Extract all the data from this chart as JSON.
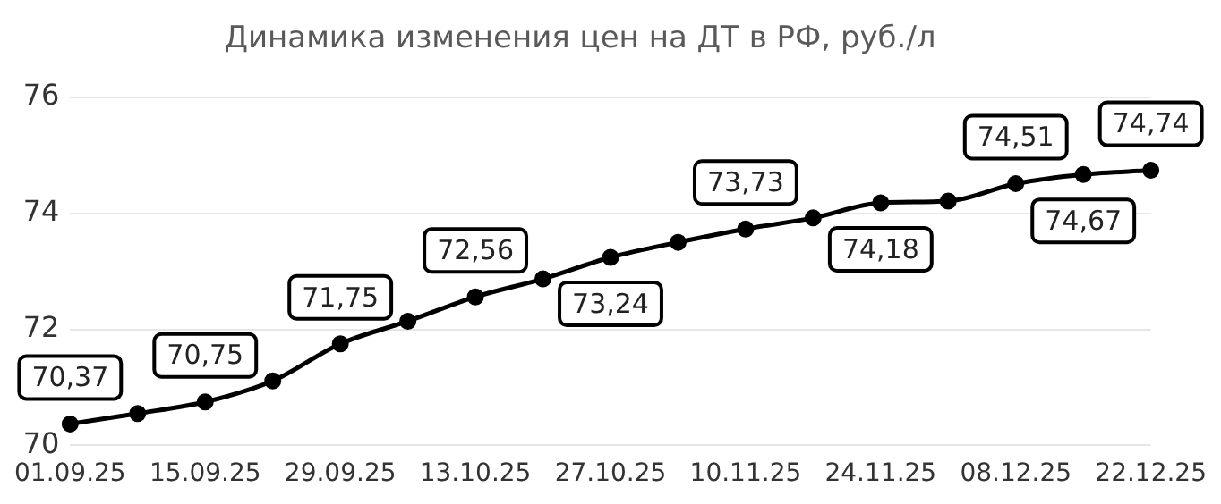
{
  "chart_data": {
    "type": "line",
    "title": "Динамика изменения цен на ДТ в РФ, руб./л",
    "categories": [
      "01.09.25",
      null,
      "15.09.25",
      null,
      "29.09.25",
      null,
      "13.10.25",
      null,
      "27.10.25",
      null,
      "10.11.25",
      null,
      "24.11.25",
      null,
      "08.12.25",
      null,
      "22.12.25"
    ],
    "series": [
      {
        "color": "#000000",
        "values": [
          70.37,
          70.55,
          70.75,
          71.11,
          71.75,
          72.14,
          72.56,
          72.87,
          73.24,
          73.5,
          73.73,
          73.92,
          74.18,
          74.21,
          74.51,
          74.67,
          74.74
        ],
        "value_labels": [
          "70,37",
          null,
          "70,75",
          null,
          "71,75",
          null,
          "72,56",
          null,
          "73,24",
          null,
          "73,73",
          null,
          "74,18",
          null,
          "74,51",
          "74,67",
          "74,74"
        ]
      }
    ],
    "ylim": [
      70,
      76
    ],
    "yticks": [
      70,
      72,
      74,
      76
    ],
    "grid": "y",
    "legend": false,
    "marker": "circle",
    "line_style": "solid"
  }
}
